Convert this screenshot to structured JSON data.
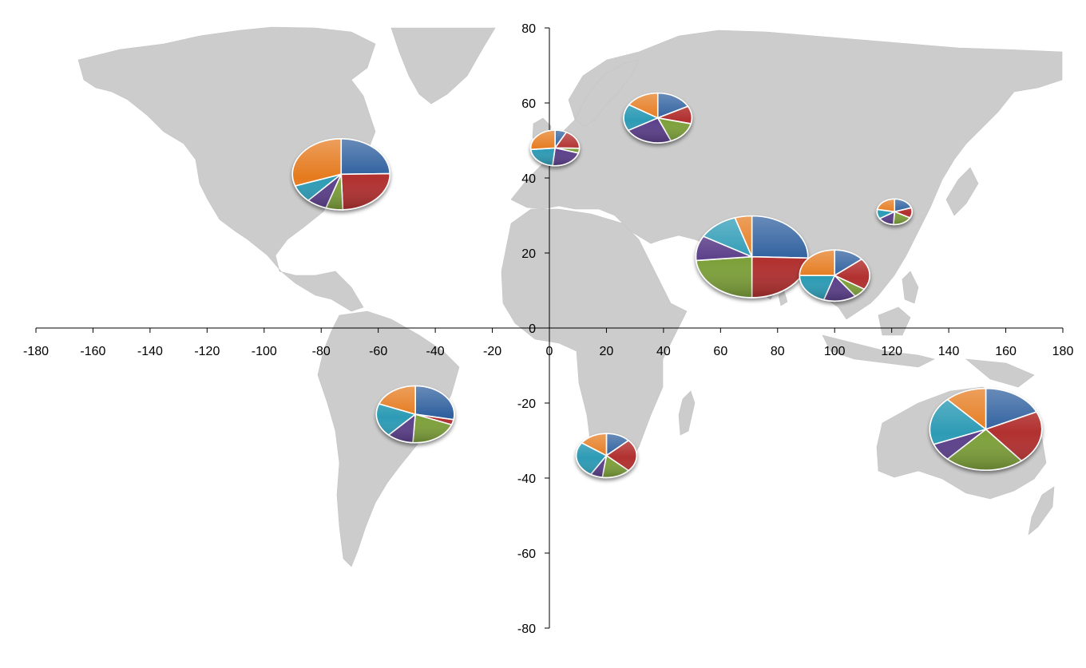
{
  "chart_data": {
    "type": "pie-on-map",
    "x_axis": {
      "range": [
        -180,
        180
      ],
      "ticks": [
        -180,
        -160,
        -140,
        -120,
        -100,
        -80,
        -60,
        -40,
        -20,
        0,
        20,
        40,
        60,
        80,
        100,
        120,
        140,
        160,
        180
      ]
    },
    "y_axis": {
      "range": [
        -80,
        80
      ],
      "ticks": [
        80,
        60,
        40,
        20,
        0,
        -20,
        -40,
        -60,
        -80
      ]
    },
    "grid": false,
    "legend": "none",
    "slice_colors": [
      "#2e5f9e",
      "#b1302f",
      "#7da03a",
      "#5b3f8a",
      "#2d9bb5",
      "#e57a1e"
    ],
    "pies": [
      {
        "lon": -73,
        "lat": 41,
        "size": 1.0,
        "values": [
          0.22,
          0.22,
          0.05,
          0.06,
          0.07,
          0.27
        ]
      },
      {
        "lon": 2,
        "lat": 48,
        "size": 0.5,
        "values": [
          0.07,
          0.16,
          0.04,
          0.2,
          0.2,
          0.24
        ]
      },
      {
        "lon": 38,
        "lat": 56,
        "size": 0.7,
        "values": [
          0.15,
          0.1,
          0.13,
          0.2,
          0.15,
          0.14
        ]
      },
      {
        "lon": 71,
        "lat": 19,
        "size": 1.15,
        "values": [
          0.26,
          0.25,
          0.24,
          0.1,
          0.12,
          0.05
        ]
      },
      {
        "lon": 100,
        "lat": 14,
        "size": 0.72,
        "values": [
          0.14,
          0.2,
          0.06,
          0.15,
          0.2,
          0.25
        ]
      },
      {
        "lon": 121,
        "lat": 31,
        "size": 0.36,
        "values": [
          0.2,
          0.13,
          0.18,
          0.15,
          0.12,
          0.22
        ]
      },
      {
        "lon": -47,
        "lat": -23,
        "size": 0.8,
        "values": [
          0.28,
          0.03,
          0.2,
          0.11,
          0.19,
          0.19
        ]
      },
      {
        "lon": 20,
        "lat": -34,
        "size": 0.62,
        "values": [
          0.12,
          0.22,
          0.14,
          0.06,
          0.24,
          0.14
        ]
      },
      {
        "lon": 153,
        "lat": -27,
        "size": 1.15,
        "values": [
          0.18,
          0.21,
          0.23,
          0.07,
          0.19,
          0.12
        ]
      }
    ]
  }
}
